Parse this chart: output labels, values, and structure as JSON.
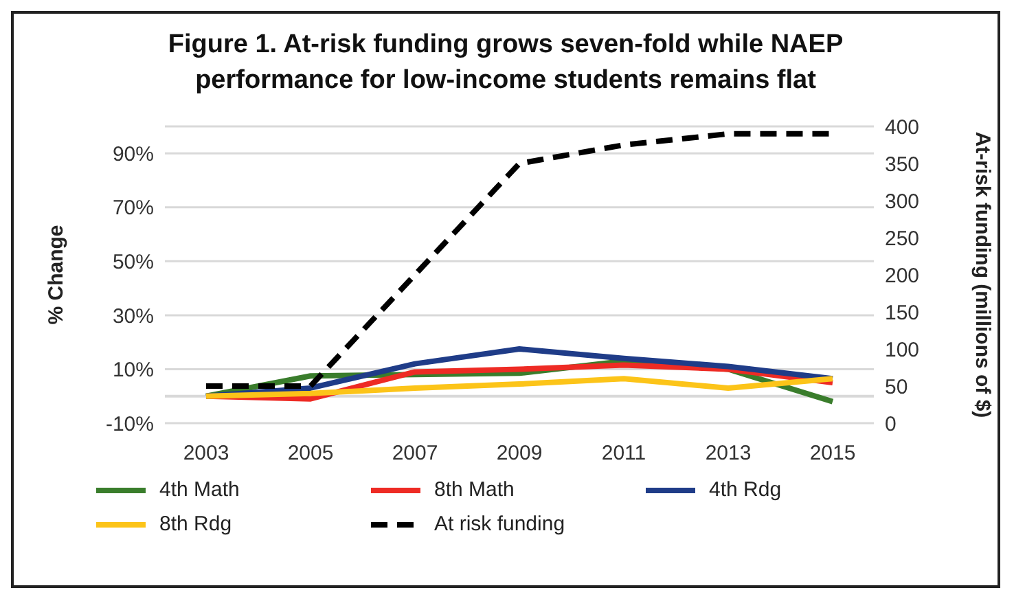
{
  "chart_data": {
    "type": "line",
    "title": "Figure 1. At-risk funding grows seven-fold while NAEP performance for low-income students remains flat",
    "ylabel": "% Change",
    "y2label": "At-risk funding (millions of $)",
    "categories": [
      "2003",
      "2005",
      "2007",
      "2009",
      "2011",
      "2013",
      "2015"
    ],
    "series": [
      {
        "name": "4th Math",
        "color": "#3a7d2c",
        "values": [
          0,
          7.5,
          8,
          8.5,
          13,
          10,
          -2
        ]
      },
      {
        "name": "8th Math",
        "color": "#ee2b24",
        "values": [
          0,
          -1,
          9,
          10,
          11.5,
          10,
          5
        ]
      },
      {
        "name": "4th Rdg",
        "color": "#1f3c88",
        "values": [
          0,
          3,
          12,
          17.5,
          14,
          11,
          6.5
        ]
      },
      {
        "name": "8th Rdg",
        "color": "#fcc419",
        "values": [
          0,
          1,
          3,
          4.5,
          6.5,
          3,
          6.5
        ]
      },
      {
        "name": "At risk funding",
        "color": "#000000",
        "axis": "y2",
        "line_style": "dashed",
        "values": [
          50,
          50,
          200,
          350,
          375,
          390,
          390
        ]
      }
    ],
    "ylim": [
      -10,
      100
    ],
    "yticks": [
      {
        "value": -10,
        "label": "-10%"
      },
      {
        "value": 10,
        "label": "10%"
      },
      {
        "value": 30,
        "label": "30%"
      },
      {
        "value": 50,
        "label": "50%"
      },
      {
        "value": 70,
        "label": "70%"
      },
      {
        "value": 90,
        "label": "90%"
      }
    ],
    "y2lim": [
      0,
      400
    ],
    "y2ticks": [
      0,
      50,
      100,
      150,
      200,
      250,
      300,
      350,
      400
    ],
    "ref_lines": [
      {
        "axis": "y",
        "value": 0,
        "color": "#d9d9d9"
      }
    ],
    "grid": "y",
    "legend": "bottom",
    "marker": "none"
  }
}
